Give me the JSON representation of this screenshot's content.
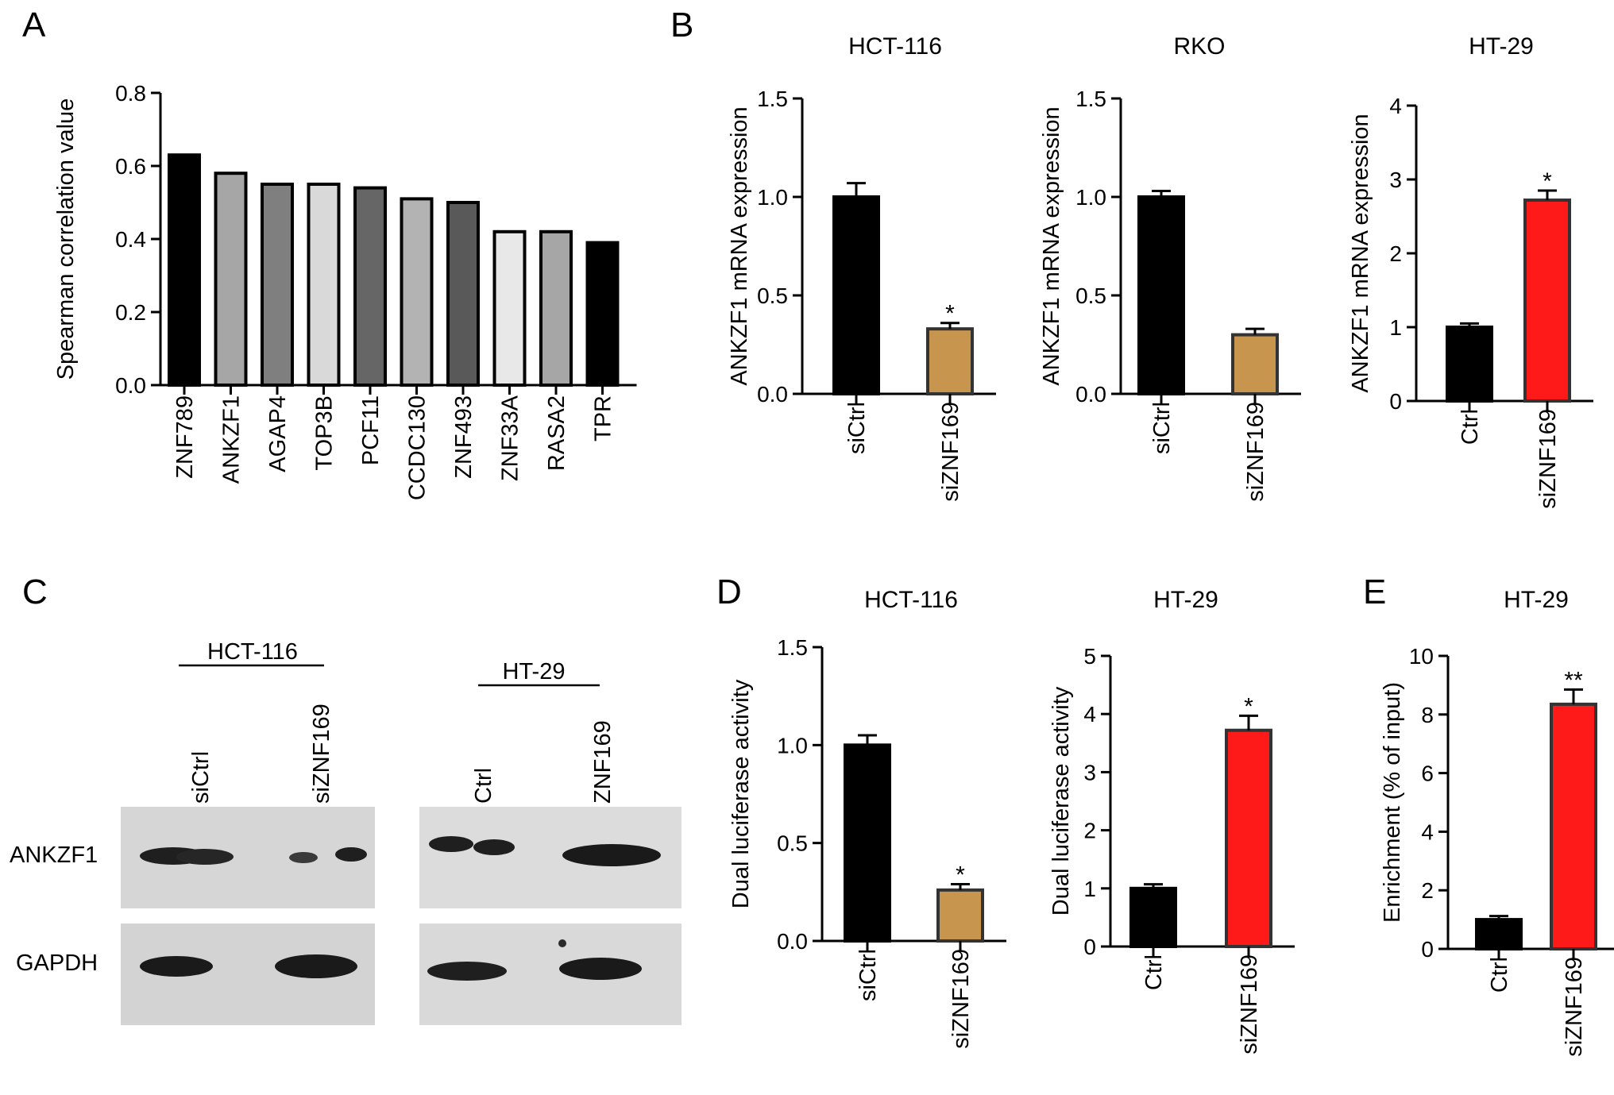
{
  "panels": {
    "A": "A",
    "B": "B",
    "C": "C",
    "D": "D",
    "E": "E"
  },
  "colors": {
    "black": "#000000",
    "tan": "#c8954e",
    "red": "#ff1a1a",
    "grey_bar_stroke": "#222222",
    "blot_bg": "#d9d9d9",
    "band": "#1a1a1a"
  },
  "chart_data": [
    {
      "id": "A",
      "type": "bar",
      "title": "",
      "ylabel": "Spearman correlation value",
      "xlabel": "",
      "ylim": [
        0,
        0.8
      ],
      "yticks": [
        0.0,
        0.2,
        0.4,
        0.6,
        0.8
      ],
      "categories": [
        "ZNF789",
        "ANKZF1",
        "AGAP4",
        "TOP3B",
        "PCF11",
        "CCDC130",
        "ZNF493",
        "ZNF33A",
        "RASA2",
        "TPR"
      ],
      "values": [
        0.63,
        0.58,
        0.55,
        0.55,
        0.54,
        0.51,
        0.5,
        0.42,
        0.42,
        0.39
      ],
      "fills": [
        "#000000",
        "#a6a6a6",
        "#7f7f7f",
        "#d9d9d9",
        "#666666",
        "#b3b3b3",
        "#595959",
        "#e8e8e8",
        "#a6a6a6",
        "#000000"
      ]
    },
    {
      "id": "B1",
      "type": "bar",
      "title": "HCT-116",
      "ylabel": "ANKZF1 mRNA expression",
      "ylim": [
        0,
        1.5
      ],
      "yticks": [
        0.0,
        0.5,
        1.0,
        1.5
      ],
      "categories": [
        "siCtrl",
        "siZNF169"
      ],
      "values": [
        1.0,
        0.33
      ],
      "errors": [
        0.07,
        0.03
      ],
      "annotations": [
        "",
        "*"
      ],
      "fills": [
        "black",
        "tan"
      ]
    },
    {
      "id": "B2",
      "type": "bar",
      "title": "RKO",
      "ylabel": "ANKZF1 mRNA expression",
      "ylim": [
        0,
        1.5
      ],
      "yticks": [
        0.0,
        0.5,
        1.0,
        1.5
      ],
      "categories": [
        "siCtrl",
        "siZNF169"
      ],
      "values": [
        1.0,
        0.3
      ],
      "errors": [
        0.03,
        0.03
      ],
      "annotations": [
        "",
        ""
      ],
      "fills": [
        "black",
        "tan"
      ]
    },
    {
      "id": "B3",
      "type": "bar",
      "title": "HT-29",
      "ylabel": "ANKZF1 mRNA expression",
      "ylim": [
        0,
        4
      ],
      "yticks": [
        0,
        1,
        2,
        3,
        4
      ],
      "categories": [
        "Ctrl",
        "siZNF169"
      ],
      "values": [
        1.0,
        2.72
      ],
      "errors": [
        0.05,
        0.13
      ],
      "annotations": [
        "",
        "*"
      ],
      "fills": [
        "black",
        "red"
      ]
    },
    {
      "id": "D1",
      "type": "bar",
      "title": "HCT-116",
      "ylabel": "Dual luciferase activity",
      "ylim": [
        0,
        1.5
      ],
      "yticks": [
        0.0,
        0.5,
        1.0,
        1.5
      ],
      "categories": [
        "siCtrl",
        "siZNF169"
      ],
      "values": [
        1.0,
        0.26
      ],
      "errors": [
        0.05,
        0.03
      ],
      "annotations": [
        "",
        "*"
      ],
      "fills": [
        "black",
        "tan"
      ]
    },
    {
      "id": "D2",
      "type": "bar",
      "title": "HT-29",
      "ylabel": "Dual luciferase activity",
      "ylim": [
        0,
        5
      ],
      "yticks": [
        0,
        1,
        2,
        3,
        4,
        5
      ],
      "categories": [
        "Ctrl",
        "siZNF169"
      ],
      "values": [
        1.0,
        3.72
      ],
      "errors": [
        0.07,
        0.25
      ],
      "annotations": [
        "",
        "*"
      ],
      "fills": [
        "black",
        "red"
      ]
    },
    {
      "id": "E",
      "type": "bar",
      "title": "HT-29",
      "ylabel": "Enrichment (% of input)",
      "ylim": [
        0,
        10
      ],
      "yticks": [
        0,
        2,
        4,
        6,
        8,
        10
      ],
      "categories": [
        "Ctrl",
        "siZNF169"
      ],
      "values": [
        1.0,
        8.35
      ],
      "errors": [
        0.12,
        0.5
      ],
      "annotations": [
        "",
        "**"
      ],
      "fills": [
        "black",
        "red"
      ]
    }
  ],
  "western_blot": {
    "groups": [
      {
        "name": "HCT-116",
        "lanes": [
          "siCtrl",
          "siZNF169"
        ]
      },
      {
        "name": "HT-29",
        "lanes": [
          "Ctrl",
          "ZNF169"
        ]
      }
    ],
    "rows": [
      "ANKZF1",
      "GAPDH"
    ]
  }
}
